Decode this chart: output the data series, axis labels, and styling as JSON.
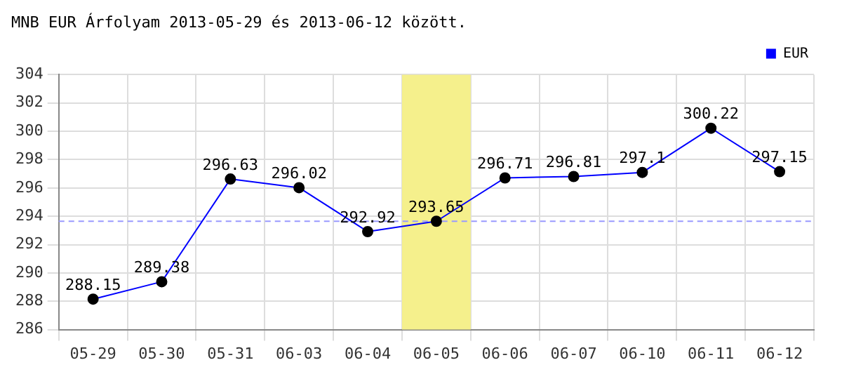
{
  "chart_data": {
    "type": "line",
    "title": "MNB EUR Árfolyam 2013-05-29 és 2013-06-12 között.",
    "categories": [
      "05-29",
      "05-30",
      "05-31",
      "06-03",
      "06-04",
      "06-05",
      "06-06",
      "06-07",
      "06-10",
      "06-11",
      "06-12"
    ],
    "series": [
      {
        "name": "EUR",
        "color": "#0000ff",
        "values": [
          288.15,
          289.38,
          296.63,
          296.02,
          292.92,
          293.65,
          296.71,
          296.81,
          297.1,
          300.22,
          297.15
        ]
      }
    ],
    "ylim": [
      286,
      304
    ],
    "yticks": [
      286,
      288,
      290,
      292,
      294,
      296,
      298,
      300,
      302,
      304
    ],
    "grid": true,
    "legend": "top right",
    "marker": "circle",
    "line_style": "solid",
    "data_labels": true,
    "ref_lines": [
      {
        "axis": "y",
        "value": 293.65,
        "color": "#9999ff",
        "line_style": "dashed"
      }
    ],
    "bands": [
      {
        "axis": "x",
        "from": "06-05",
        "to": "06-05",
        "color": "#f5f08c"
      }
    ]
  }
}
